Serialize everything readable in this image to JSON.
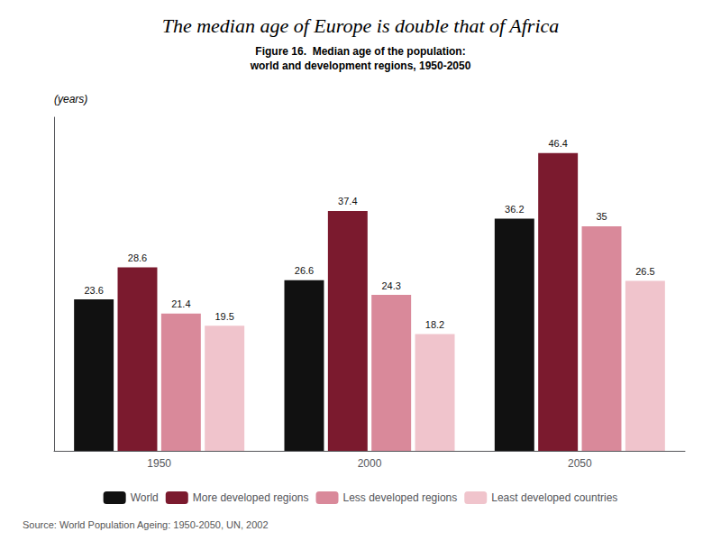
{
  "chart_data": {
    "type": "bar",
    "title": "The median age of Europe is double that of Africa",
    "subtitle": [
      "Figure 16.  Median age of the population:",
      "world and development regions, 1950-2050"
    ],
    "ylabel": "(years)",
    "annotations": [
      "Source: World Population Ageing: 1950-2050, UN, 2002"
    ],
    "categories": [
      "1950",
      "2000",
      "2050"
    ],
    "series": [
      {
        "name": "World",
        "color": "#111111",
        "values": [
          23.6,
          26.6,
          36.2
        ]
      },
      {
        "name": "More developed regions",
        "color": "#7b1a2e",
        "values": [
          28.6,
          37.4,
          46.4
        ]
      },
      {
        "name": "Less developed regions",
        "color": "#d9899a",
        "values": [
          21.4,
          24.3,
          35.0
        ]
      },
      {
        "name": "Least developed countries",
        "color": "#f0c4cc",
        "values": [
          19.5,
          18.2,
          26.5
        ]
      }
    ],
    "ylim": [
      0,
      52
    ],
    "tick_labels": "x",
    "data_labels": true,
    "legend": "bottom",
    "grid": false
  }
}
